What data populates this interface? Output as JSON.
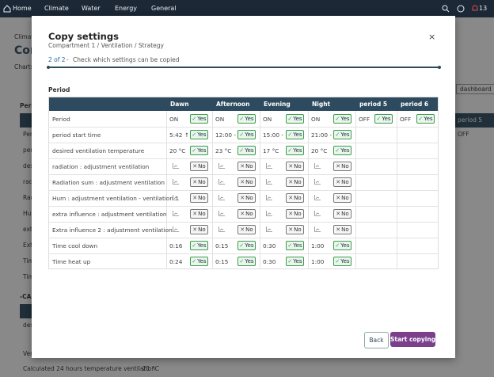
{
  "nav": {
    "items": [
      "Home",
      "Climate",
      "Water",
      "Energy",
      "General"
    ],
    "notifications": 13
  },
  "background": {
    "breadcrumb": "Climat",
    "title": "Com",
    "subtitle": "Charts",
    "section": "Perio",
    "rows": [
      "Per",
      "peri",
      "des",
      "rad",
      "Rad",
      "Hum",
      "ext",
      "Ext",
      "Tim",
      "Tim"
    ],
    "section2": "-CAL",
    "row2": "desi",
    "row3": "Ver",
    "footer_label": "Calculated 24 hours temperature ventilation",
    "footer_value": "21 °C",
    "dashboard_button": "dashboard",
    "column": "period 5",
    "cell": "OFF"
  },
  "dialog": {
    "title": "Copy settings",
    "subtitle": "Compartment 1 / Ventilation / Strategy",
    "step": "2 of 2",
    "separator": "-",
    "instruction": "Check which settings can be copied",
    "section": "Period",
    "table": {
      "columns": [
        "Dawn",
        "Afternoon",
        "Evening",
        "Night",
        "period 5",
        "period 6"
      ],
      "rows": [
        {
          "label": "Period",
          "cells": [
            {
              "value": "ON",
              "toggle": "Yes"
            },
            {
              "value": "ON",
              "toggle": "Yes"
            },
            {
              "value": "ON",
              "toggle": "Yes"
            },
            {
              "value": "ON",
              "toggle": "Yes"
            },
            {
              "value": "OFF",
              "toggle": "Yes"
            },
            {
              "value": "OFF",
              "toggle": "Yes"
            }
          ]
        },
        {
          "label": "period start time",
          "cells": [
            {
              "value": "5:42 ↑",
              "toggle": "Yes"
            },
            {
              "value": "12:00 -",
              "toggle": "Yes"
            },
            {
              "value": "15:00 -",
              "toggle": "Yes"
            },
            {
              "value": "21:00 -",
              "toggle": "Yes"
            }
          ]
        },
        {
          "label": "desired ventilation temperature",
          "cells": [
            {
              "value": "20 °C",
              "toggle": "Yes"
            },
            {
              "value": "23 °C",
              "toggle": "Yes"
            },
            {
              "value": "17 °C",
              "toggle": "Yes"
            },
            {
              "value": "20 °C",
              "toggle": "Yes"
            }
          ]
        },
        {
          "label": "radiation : adjustment ventilation",
          "cells": [
            {
              "toggle": "No"
            },
            {
              "toggle": "No"
            },
            {
              "toggle": "No"
            },
            {
              "toggle": "No"
            }
          ]
        },
        {
          "label": "Radiation sum : adjustment ventilation",
          "cells": [
            {
              "toggle": "No"
            },
            {
              "toggle": "No"
            },
            {
              "toggle": "No"
            },
            {
              "toggle": "No"
            }
          ]
        },
        {
          "label": "Hum : adjustment ventilation  - ventilation 1",
          "cells": [
            {
              "toggle": "No"
            },
            {
              "toggle": "No"
            },
            {
              "toggle": "No"
            },
            {
              "toggle": "No"
            }
          ]
        },
        {
          "label": "extra influence : adjustment ventilation",
          "cells": [
            {
              "toggle": "No"
            },
            {
              "toggle": "No"
            },
            {
              "toggle": "No"
            },
            {
              "toggle": "No"
            }
          ]
        },
        {
          "label": "Extra influence 2 : adjustment ventilation",
          "cells": [
            {
              "toggle": "No"
            },
            {
              "toggle": "No"
            },
            {
              "toggle": "No"
            },
            {
              "toggle": "No"
            }
          ]
        },
        {
          "label": "Time cool down",
          "cells": [
            {
              "value": "0:16",
              "toggle": "Yes"
            },
            {
              "value": "0:15",
              "toggle": "Yes"
            },
            {
              "value": "0:30",
              "toggle": "Yes"
            },
            {
              "value": "1:00",
              "toggle": "Yes"
            }
          ]
        },
        {
          "label": "Time heat up",
          "cells": [
            {
              "value": "0:24",
              "toggle": "Yes"
            },
            {
              "value": "0:15",
              "toggle": "Yes"
            },
            {
              "value": "0:30",
              "toggle": "Yes"
            },
            {
              "value": "1:00",
              "toggle": "Yes"
            }
          ]
        }
      ]
    },
    "buttons": {
      "back": "Back",
      "submit": "Start copying"
    }
  }
}
